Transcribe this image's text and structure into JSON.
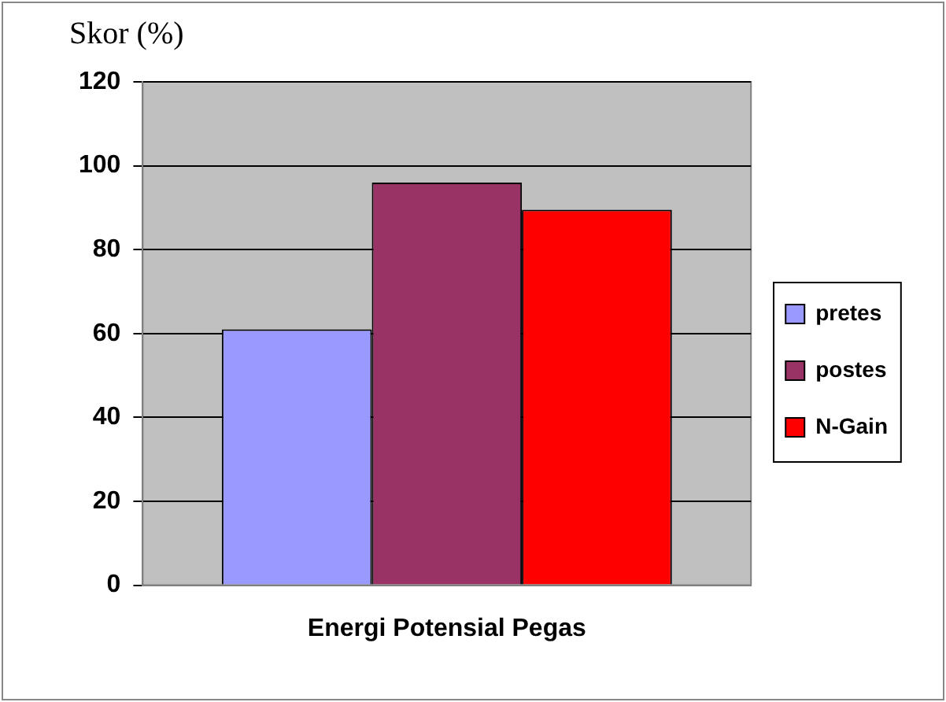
{
  "chart_data": {
    "type": "bar",
    "ylabel": "Skor (%)",
    "categories": [
      "Energi Potensial Pegas"
    ],
    "series": [
      {
        "name": "pretes",
        "color": "#9999ff",
        "values": [
          61
        ]
      },
      {
        "name": "postes",
        "color": "#993366",
        "values": [
          96
        ]
      },
      {
        "name": "N-Gain",
        "color": "#ff0000",
        "values": [
          89.5
        ]
      }
    ],
    "ylim": [
      0,
      120
    ],
    "yticks": [
      0,
      20,
      40,
      60,
      80,
      100,
      120
    ],
    "grid": "y",
    "legend": "right"
  }
}
